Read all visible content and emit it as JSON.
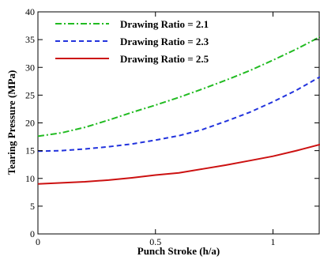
{
  "chart_data": {
    "type": "line",
    "xlabel": "Punch Stroke (h/a)",
    "ylabel": "Tearing Pressure (MPa)",
    "xlim": [
      0,
      1.2
    ],
    "ylim": [
      0,
      40
    ],
    "x_ticks": [
      0,
      0.5,
      1
    ],
    "x_tick_labels": [
      "0",
      "0.5",
      "1"
    ],
    "y_ticks": [
      0,
      5,
      10,
      15,
      20,
      25,
      30,
      35,
      40
    ],
    "y_tick_labels": [
      "0",
      "5",
      "10",
      "15",
      "20",
      "25",
      "30",
      "35",
      "40"
    ],
    "grid": false,
    "legend_position": "top-left",
    "series": [
      {
        "name": "Drawing Ratio = 2.1",
        "color": "#22bb22",
        "dash": "dash-dot",
        "x": [
          0,
          0.1,
          0.2,
          0.3,
          0.4,
          0.5,
          0.6,
          0.7,
          0.8,
          0.9,
          1.0,
          1.1,
          1.2
        ],
        "y": [
          17.6,
          18.2,
          19.2,
          20.5,
          21.9,
          23.2,
          24.6,
          26.1,
          27.7,
          29.4,
          31.3,
          33.3,
          35.5
        ]
      },
      {
        "name": "Drawing Ratio = 2.3",
        "color": "#2233dd",
        "dash": "dashed",
        "x": [
          0,
          0.1,
          0.2,
          0.3,
          0.4,
          0.5,
          0.6,
          0.7,
          0.8,
          0.9,
          1.0,
          1.1,
          1.2
        ],
        "y": [
          14.9,
          15.0,
          15.3,
          15.7,
          16.2,
          16.9,
          17.7,
          18.8,
          20.3,
          21.9,
          23.8,
          25.9,
          28.3
        ]
      },
      {
        "name": "Drawing Ratio = 2.5",
        "color": "#cc1111",
        "dash": "solid",
        "x": [
          0,
          0.1,
          0.2,
          0.3,
          0.4,
          0.5,
          0.6,
          0.7,
          0.8,
          0.9,
          1.0,
          1.1,
          1.2
        ],
        "y": [
          9.0,
          9.2,
          9.4,
          9.7,
          10.1,
          10.6,
          11.0,
          11.7,
          12.4,
          13.2,
          14.0,
          15.0,
          16.1
        ]
      }
    ]
  }
}
